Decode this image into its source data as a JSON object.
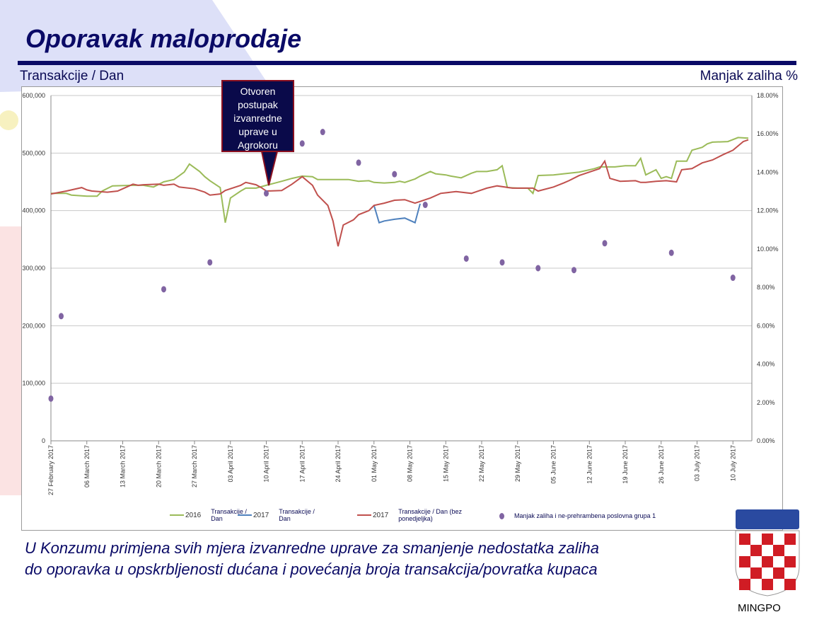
{
  "slide": {
    "title": "Oporavak maloprodaje",
    "left_axis_title": "Transakcije / Dan",
    "right_axis_title": "Manjak zaliha %",
    "callout": "Otvoren\npostupak\nizvanredne\nuprave u\nAgrokoru",
    "caption_line1": "U Konzumu primjena svih mjera izvanredne uprave za smanjenje nedostatka zaliha",
    "caption_line2": "do oporavka u opskrbljenosti dućana i povećanja broja transakcija/povratka kupaca",
    "logo_text": "MINGPO",
    "colors": {
      "title": "#0a0a66",
      "series_2016": "#9bbb59",
      "series_2017": "#4f81bd",
      "series_2017_bez": "#c0504d",
      "dots": "#8064a2",
      "callout_bg": "#0a0a4a",
      "callout_border": "#8a1020"
    }
  },
  "chart_data": {
    "type": "line",
    "ylim": [
      0,
      600000
    ],
    "y2lim": [
      0,
      18
    ],
    "grid": true,
    "legend_position": "bottom",
    "y_ticks": [
      "0",
      "100,000",
      "200,000",
      "300,000",
      "400,000",
      "500,000",
      "600,000"
    ],
    "y2_ticks": [
      "0.00%",
      "2.00%",
      "4.00%",
      "6.00%",
      "8.00%",
      "10.00%",
      "12.00%",
      "14.00%",
      "16.00%",
      "18.00%"
    ],
    "x_ticks": [
      "27 February 2017",
      "06 March 2017",
      "13 March 2017",
      "20 March 2017",
      "27 March 2017",
      "03 April 2017",
      "10 April 2017",
      "17 April 2017",
      "24 April 2017",
      "01 May 2017",
      "08 May 2017",
      "15 May 2017",
      "22 May 2017",
      "29 May 2017",
      "05 June 2017",
      "12 June 2017",
      "19 June 2017",
      "26 June 2017",
      "03 July 2017",
      "10 July 2017"
    ],
    "x_tick_dates": [
      "2017-02-27",
      "2017-03-06",
      "2017-03-13",
      "2017-03-20",
      "2017-03-27",
      "2017-04-03",
      "2017-04-10",
      "2017-04-17",
      "2017-04-24",
      "2017-05-01",
      "2017-05-08",
      "2017-05-15",
      "2017-05-22",
      "2017-05-29",
      "2017-06-05",
      "2017-06-12",
      "2017-06-19",
      "2017-06-26",
      "2017-07-03",
      "2017-07-10"
    ],
    "series": [
      {
        "name": "2016",
        "label": "Transakcije / Dan",
        "axis": "left",
        "color": "#9bbb59",
        "points": [
          [
            "2017-02-27",
            430000
          ],
          [
            "2017-03-02",
            430000
          ],
          [
            "2017-03-03",
            427000
          ],
          [
            "2017-03-06",
            425000
          ],
          [
            "2017-03-08",
            425000
          ],
          [
            "2017-03-09",
            434000
          ],
          [
            "2017-03-11",
            443000
          ],
          [
            "2017-03-15",
            444000
          ],
          [
            "2017-03-17",
            444000
          ],
          [
            "2017-03-19",
            441000
          ],
          [
            "2017-03-21",
            450000
          ],
          [
            "2017-03-23",
            454000
          ],
          [
            "2017-03-25",
            467000
          ],
          [
            "2017-03-26",
            481000
          ],
          [
            "2017-03-28",
            468000
          ],
          [
            "2017-03-29",
            459000
          ],
          [
            "2017-03-30",
            452000
          ],
          [
            "2017-04-01",
            440000
          ],
          [
            "2017-04-02",
            379000
          ],
          [
            "2017-04-03",
            422000
          ],
          [
            "2017-04-05",
            434000
          ],
          [
            "2017-04-06",
            439000
          ],
          [
            "2017-04-08",
            439000
          ],
          [
            "2017-04-10",
            444000
          ],
          [
            "2017-04-13",
            451000
          ],
          [
            "2017-04-15",
            456000
          ],
          [
            "2017-04-17",
            460000
          ],
          [
            "2017-04-19",
            459000
          ],
          [
            "2017-04-20",
            454000
          ],
          [
            "2017-04-23",
            454000
          ],
          [
            "2017-04-26",
            454000
          ],
          [
            "2017-04-28",
            451000
          ],
          [
            "2017-04-30",
            452000
          ],
          [
            "2017-05-01",
            449000
          ],
          [
            "2017-05-03",
            448000
          ],
          [
            "2017-05-05",
            449000
          ],
          [
            "2017-05-06",
            451000
          ],
          [
            "2017-05-07",
            449000
          ],
          [
            "2017-05-09",
            455000
          ],
          [
            "2017-05-10",
            460000
          ],
          [
            "2017-05-12",
            468000
          ],
          [
            "2017-05-13",
            464000
          ],
          [
            "2017-05-15",
            462000
          ],
          [
            "2017-05-16",
            460000
          ],
          [
            "2017-05-18",
            457000
          ],
          [
            "2017-05-20",
            465000
          ],
          [
            "2017-05-21",
            468000
          ],
          [
            "2017-05-23",
            468000
          ],
          [
            "2017-05-25",
            471000
          ],
          [
            "2017-05-26",
            478000
          ],
          [
            "2017-05-27",
            440000
          ],
          [
            "2017-05-29",
            439000
          ],
          [
            "2017-05-31",
            439000
          ],
          [
            "2017-06-01",
            430000
          ],
          [
            "2017-06-02",
            461000
          ],
          [
            "2017-06-05",
            462000
          ],
          [
            "2017-06-07",
            464000
          ],
          [
            "2017-06-10",
            467000
          ],
          [
            "2017-06-13",
            473000
          ],
          [
            "2017-06-14",
            476000
          ],
          [
            "2017-06-17",
            476000
          ],
          [
            "2017-06-19",
            478000
          ],
          [
            "2017-06-21",
            478000
          ],
          [
            "2017-06-22",
            491000
          ],
          [
            "2017-06-23",
            462000
          ],
          [
            "2017-06-25",
            471000
          ],
          [
            "2017-06-26",
            456000
          ],
          [
            "2017-06-27",
            459000
          ],
          [
            "2017-06-28",
            456000
          ],
          [
            "2017-06-29",
            486000
          ],
          [
            "2017-07-01",
            486000
          ],
          [
            "2017-07-02",
            505000
          ],
          [
            "2017-07-04",
            510000
          ],
          [
            "2017-07-05",
            516000
          ],
          [
            "2017-07-06",
            519000
          ],
          [
            "2017-07-09",
            520000
          ],
          [
            "2017-07-11",
            527000
          ],
          [
            "2017-07-13",
            526000
          ]
        ]
      },
      {
        "name": "2017",
        "label": "Transakcije / Dan",
        "axis": "left",
        "color": "#4f81bd",
        "points": [
          [
            "2017-05-01",
            409000
          ],
          [
            "2017-05-02",
            379000
          ],
          [
            "2017-05-03",
            382000
          ],
          [
            "2017-05-05",
            385000
          ],
          [
            "2017-05-07",
            387000
          ],
          [
            "2017-05-09",
            379000
          ],
          [
            "2017-05-10",
            412000
          ]
        ]
      },
      {
        "name": "2017",
        "label": "Transakcije / Dan (bez ponedjeljka)",
        "axis": "left",
        "color": "#c0504d",
        "points": [
          [
            "2017-02-27",
            429000
          ],
          [
            "2017-03-02",
            434000
          ],
          [
            "2017-03-05",
            440000
          ],
          [
            "2017-03-06",
            436000
          ],
          [
            "2017-03-07",
            434000
          ],
          [
            "2017-03-10",
            432000
          ],
          [
            "2017-03-12",
            434000
          ],
          [
            "2017-03-13",
            438000
          ],
          [
            "2017-03-15",
            446000
          ],
          [
            "2017-03-16",
            444000
          ],
          [
            "2017-03-17",
            445000
          ],
          [
            "2017-03-20",
            446000
          ],
          [
            "2017-03-21",
            444000
          ],
          [
            "2017-03-23",
            446000
          ],
          [
            "2017-03-24",
            441000
          ],
          [
            "2017-03-27",
            438000
          ],
          [
            "2017-03-29",
            432000
          ],
          [
            "2017-03-30",
            427000
          ],
          [
            "2017-04-01",
            429000
          ],
          [
            "2017-04-02",
            435000
          ],
          [
            "2017-04-05",
            444000
          ],
          [
            "2017-04-06",
            449000
          ],
          [
            "2017-04-08",
            445000
          ],
          [
            "2017-04-09",
            440000
          ],
          [
            "2017-04-10",
            434000
          ],
          [
            "2017-04-13",
            435000
          ],
          [
            "2017-04-15",
            446000
          ],
          [
            "2017-04-17",
            459000
          ],
          [
            "2017-04-19",
            444000
          ],
          [
            "2017-04-20",
            427000
          ],
          [
            "2017-04-22",
            409000
          ],
          [
            "2017-04-23",
            382000
          ],
          [
            "2017-04-24",
            338000
          ],
          [
            "2017-04-25",
            375000
          ],
          [
            "2017-04-27",
            384000
          ],
          [
            "2017-04-28",
            393000
          ],
          [
            "2017-04-30",
            400000
          ],
          [
            "2017-05-01",
            409000
          ],
          [
            "2017-05-03",
            413000
          ],
          [
            "2017-05-05",
            418000
          ],
          [
            "2017-05-07",
            419000
          ],
          [
            "2017-05-08",
            416000
          ],
          [
            "2017-05-09",
            413000
          ],
          [
            "2017-05-10",
            416000
          ],
          [
            "2017-05-12",
            422000
          ],
          [
            "2017-05-14",
            430000
          ],
          [
            "2017-05-17",
            433000
          ],
          [
            "2017-05-20",
            430000
          ],
          [
            "2017-05-21",
            433000
          ],
          [
            "2017-05-23",
            439000
          ],
          [
            "2017-05-25",
            443000
          ],
          [
            "2017-05-28",
            439000
          ],
          [
            "2017-06-01",
            439000
          ],
          [
            "2017-06-02",
            434000
          ],
          [
            "2017-06-05",
            441000
          ],
          [
            "2017-06-07",
            448000
          ],
          [
            "2017-06-08",
            452000
          ],
          [
            "2017-06-10",
            461000
          ],
          [
            "2017-06-12",
            467000
          ],
          [
            "2017-06-14",
            473000
          ],
          [
            "2017-06-15",
            486000
          ],
          [
            "2017-06-16",
            456000
          ],
          [
            "2017-06-18",
            451000
          ],
          [
            "2017-06-21",
            452000
          ],
          [
            "2017-06-22",
            449000
          ],
          [
            "2017-06-23",
            449000
          ],
          [
            "2017-06-25",
            451000
          ],
          [
            "2017-06-27",
            452000
          ],
          [
            "2017-06-29",
            450000
          ],
          [
            "2017-06-30",
            471000
          ],
          [
            "2017-07-02",
            473000
          ],
          [
            "2017-07-04",
            483000
          ],
          [
            "2017-07-06",
            488000
          ],
          [
            "2017-07-08",
            497000
          ],
          [
            "2017-07-10",
            505000
          ],
          [
            "2017-07-12",
            520000
          ],
          [
            "2017-07-13",
            523000
          ]
        ]
      },
      {
        "name": "Manjak zaliha i ne-prehrambena poslovna grupa 1",
        "type": "scatter",
        "axis": "right",
        "color": "#8064a2",
        "points": [
          [
            "2017-02-27",
            2.2
          ],
          [
            "2017-03-01",
            6.5
          ],
          [
            "2017-03-21",
            7.9
          ],
          [
            "2017-03-30",
            9.3
          ],
          [
            "2017-04-10",
            12.9
          ],
          [
            "2017-04-17",
            15.5
          ],
          [
            "2017-04-21",
            16.1
          ],
          [
            "2017-04-28",
            14.5
          ],
          [
            "2017-05-05",
            13.9
          ],
          [
            "2017-05-11",
            12.3
          ],
          [
            "2017-05-19",
            9.5
          ],
          [
            "2017-05-26",
            9.3
          ],
          [
            "2017-06-02",
            9.0
          ],
          [
            "2017-06-09",
            8.9
          ],
          [
            "2017-06-15",
            10.3
          ],
          [
            "2017-06-28",
            9.8
          ],
          [
            "2017-07-10",
            8.5
          ]
        ]
      }
    ],
    "legend": [
      {
        "year": "2016",
        "label": "Transakcije / Dan"
      },
      {
        "year": "2017",
        "label": "Transakcije / Dan"
      },
      {
        "year": "2017",
        "label": "Transakcije / Dan (bez ponedjeljka)"
      },
      {
        "year": "",
        "label": "Manjak zaliha i ne-prehrambena poslovna grupa 1"
      }
    ]
  }
}
